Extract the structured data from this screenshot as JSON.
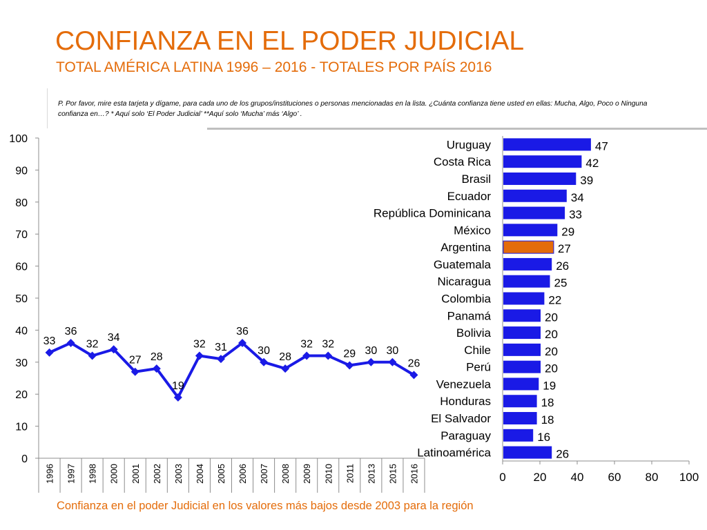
{
  "header": {
    "title": "CONFIANZA EN EL PODER JUDICIAL",
    "subtitle": "TOTAL AMÉRICA LATINA 1996 – 2016 - TOTALES POR PAÍS 2016"
  },
  "question": {
    "text": "P. Por favor, mire esta tarjeta y dígame, para cada uno de los grupos/instituciones o personas mencionadas en la lista. ¿Cuánta confianza tiene usted en ellas: Mucha, Algo, Poco o Ninguna confianza en…? * Aquí solo ‘El Poder Judicial’   **Aquí solo ‘Mucha’ más ‘Algo’ ."
  },
  "footer": {
    "note": "Confianza en el poder Judicial en los valores más bajos desde 2003 para la región"
  },
  "colors": {
    "accent": "#e46c0a",
    "series": "#1a1ae6",
    "highlight": "#e46c0a"
  },
  "chart_data": [
    {
      "type": "line",
      "title": "",
      "x": [
        "1996",
        "1997",
        "1998",
        "2000",
        "2001",
        "2002",
        "2003",
        "2004",
        "2005",
        "2006",
        "2007",
        "2008",
        "2009",
        "2010",
        "2011",
        "2013",
        "2015",
        "2016"
      ],
      "values": [
        33,
        36,
        32,
        34,
        27,
        28,
        19,
        32,
        31,
        36,
        30,
        28,
        32,
        32,
        29,
        30,
        30,
        26
      ],
      "ylim": [
        0,
        100
      ],
      "yticks": [
        "0",
        "10",
        "20",
        "30",
        "40",
        "50",
        "60",
        "70",
        "80",
        "90",
        "100"
      ],
      "xlabel": "",
      "ylabel": "",
      "grid": false
    },
    {
      "type": "bar",
      "orientation": "horizontal",
      "title": "",
      "categories": [
        "Uruguay",
        "Costa Rica",
        "Brasil",
        "Ecuador",
        "República Dominicana",
        "México",
        "Argentina",
        "Guatemala",
        "Nicaragua",
        "Colombia",
        "Panamá",
        "Bolivia",
        "Chile",
        "Perú",
        "Venezuela",
        "Honduras",
        "El Salvador",
        "Paraguay",
        "Latinoamérica"
      ],
      "values": [
        47,
        42,
        39,
        34,
        33,
        29,
        27,
        26,
        25,
        22,
        20,
        20,
        20,
        20,
        19,
        18,
        18,
        16,
        26
      ],
      "highlight": "Argentina",
      "xlim": [
        0,
        100
      ],
      "xticks": [
        "0",
        "20",
        "40",
        "60",
        "80",
        "100"
      ],
      "grid": false
    }
  ]
}
